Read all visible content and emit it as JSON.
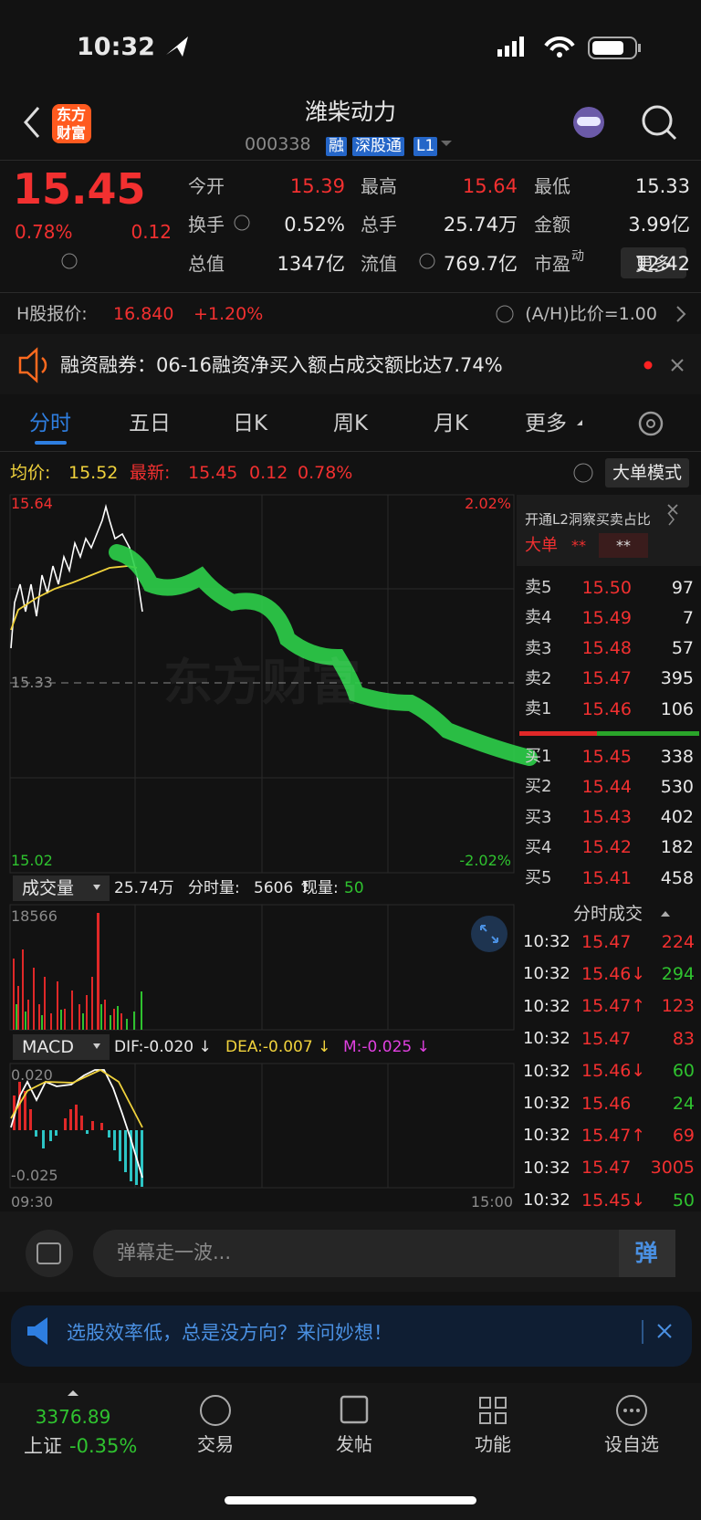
{
  "status_bar": {
    "time": "10:32"
  },
  "header": {
    "logo_lines": [
      "东方",
      "财富"
    ],
    "title": "潍柴动力",
    "code": "000338",
    "badges": [
      "融",
      "深股通",
      "L1"
    ]
  },
  "quote": {
    "price": "15.45",
    "change_pct": "0.78%",
    "change": "0.12",
    "stats": [
      [
        {
          "label": "今开",
          "value": "15.39",
          "color": "#f23030"
        },
        {
          "label": "最高",
          "value": "15.64",
          "color": "#f23030"
        },
        {
          "label": "最低",
          "value": "15.33",
          "color": "#e8e8e8"
        }
      ],
      [
        {
          "label": "换手",
          "value": "0.52%",
          "color": "#e8e8e8"
        },
        {
          "label": "总手",
          "value": "25.74万",
          "color": "#e8e8e8"
        },
        {
          "label": "金额",
          "value": "3.99亿",
          "color": "#e8e8e8"
        }
      ],
      [
        {
          "label": "总值",
          "value": "1347亿",
          "color": "#e8e8e8"
        },
        {
          "label": "流值",
          "value": "769.7亿",
          "color": "#e8e8e8"
        },
        {
          "label": "市盈",
          "superscript": "动",
          "value": "12.42",
          "color": "#e8e8e8"
        }
      ]
    ],
    "more_button": "更多"
  },
  "hshare": {
    "label": "H股报价:",
    "price": "16.840",
    "change": "+1.20%",
    "ratio": "(A/H)比价=1.00"
  },
  "notice": {
    "text": "融资融券：06-16融资净买入额占成交额比达7.74%"
  },
  "tabs": [
    "分时",
    "五日",
    "日K",
    "周K",
    "月K",
    "更多"
  ],
  "info": {
    "avg_label": "均价:",
    "avg": "15.52",
    "last_label": "最新:",
    "last": "15.45",
    "change": "0.12",
    "pct": "0.78%",
    "mode_button": "大单模式"
  },
  "chart": {
    "price_high": "15.64",
    "pct_high": "2.02%",
    "price_mid": "15.33",
    "price_low": "15.02",
    "pct_low": "-2.02%",
    "watermark": "东方财富"
  },
  "volume": {
    "dropdown": "成交量",
    "total": "25.74万",
    "period_label": "分时量:",
    "period": "5606 ↑",
    "now_label": "现量:",
    "now": "50",
    "max": "18566"
  },
  "macd": {
    "dropdown": "MACD",
    "dif": "DIF:-0.020 ↓",
    "dea": "DEA:-0.007 ↓",
    "m": "M:-0.025 ↓",
    "top": "0.020",
    "bottom": "-0.025",
    "start_time": "09:30",
    "end_time": "15:00"
  },
  "order_book": {
    "promo": "开通L2洞察买卖占比",
    "big_order_label": "大单",
    "big_order_sell": "**",
    "big_order_buy": "**",
    "asks": [
      [
        "卖5",
        "15.50",
        "97"
      ],
      [
        "卖4",
        "15.49",
        "7"
      ],
      [
        "卖3",
        "15.48",
        "57"
      ],
      [
        "卖2",
        "15.47",
        "395"
      ],
      [
        "卖1",
        "15.46",
        "106"
      ]
    ],
    "bids": [
      [
        "买1",
        "15.45",
        "338"
      ],
      [
        "买2",
        "15.44",
        "530"
      ],
      [
        "买3",
        "15.43",
        "402"
      ],
      [
        "买4",
        "15.42",
        "182"
      ],
      [
        "买5",
        "15.41",
        "458"
      ]
    ]
  },
  "trades": {
    "title": "分时成交",
    "rows": [
      {
        "time": "10:32",
        "price": "15.47",
        "volume": "224",
        "color": "#f23030"
      },
      {
        "time": "10:32",
        "price": "15.46↓",
        "volume": "294",
        "color": "#2fc22f"
      },
      {
        "time": "10:32",
        "price": "15.47↑",
        "volume": "123",
        "color": "#f23030"
      },
      {
        "time": "10:32",
        "price": "15.47",
        "volume": "83",
        "color": "#f23030"
      },
      {
        "time": "10:32",
        "price": "15.46↓",
        "volume": "60",
        "color": "#2fc22f"
      },
      {
        "time": "10:32",
        "price": "15.46",
        "volume": "24",
        "color": "#2fc22f"
      },
      {
        "time": "10:32",
        "price": "15.47↑",
        "volume": "69",
        "color": "#f23030"
      },
      {
        "time": "10:32",
        "price": "15.47",
        "volume": "3005",
        "color": "#f23030"
      },
      {
        "time": "10:32",
        "price": "15.45↓",
        "volume": "50",
        "color": "#2fc22f"
      }
    ]
  },
  "comment": {
    "placeholder": "弹幕走一波...",
    "button": "弹"
  },
  "banner": {
    "text": "选股效率低，总是没方向？来问妙想！"
  },
  "nav": {
    "index_value": "3376.89",
    "index_name": "上证",
    "index_change": "-0.35%",
    "items": [
      "交易",
      "发帖",
      "功能",
      "设自选"
    ]
  }
}
